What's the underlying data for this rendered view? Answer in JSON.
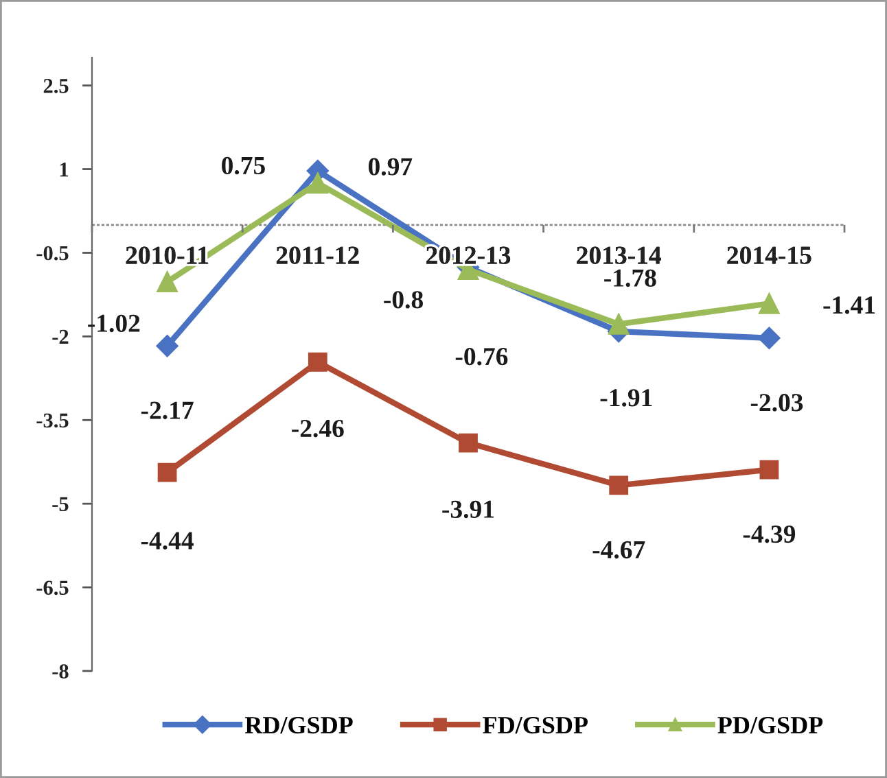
{
  "chart_data": {
    "type": "line",
    "categories": [
      "2010-11",
      "2011-12",
      "2012-13",
      "2013-14",
      "2014-15"
    ],
    "series": [
      {
        "name": "RD/GSDP",
        "color": "#4a72c2",
        "marker": "diamond",
        "values": [
          -2.17,
          0.97,
          -0.76,
          -1.91,
          -2.03
        ]
      },
      {
        "name": "FD/GSDP",
        "color": "#b04a32",
        "marker": "square",
        "values": [
          -4.44,
          -2.46,
          -3.91,
          -4.67,
          -4.39
        ]
      },
      {
        "name": "PD/GSDP",
        "color": "#9bbb59",
        "marker": "triangle",
        "values": [
          -1.02,
          0.75,
          -0.8,
          -1.78,
          -1.41
        ]
      }
    ],
    "ylim": [
      -8,
      3
    ],
    "yticks": [
      2.5,
      1,
      -0.5,
      -2,
      -3.5,
      -5,
      -6.5,
      -8
    ],
    "ref_lines": [
      {
        "axis": "y",
        "value": 0,
        "color": "#8a8a8a",
        "line_style": "dotted"
      }
    ],
    "grid": false,
    "legend": "bottom",
    "data_labels": true,
    "line_style": "solid"
  }
}
